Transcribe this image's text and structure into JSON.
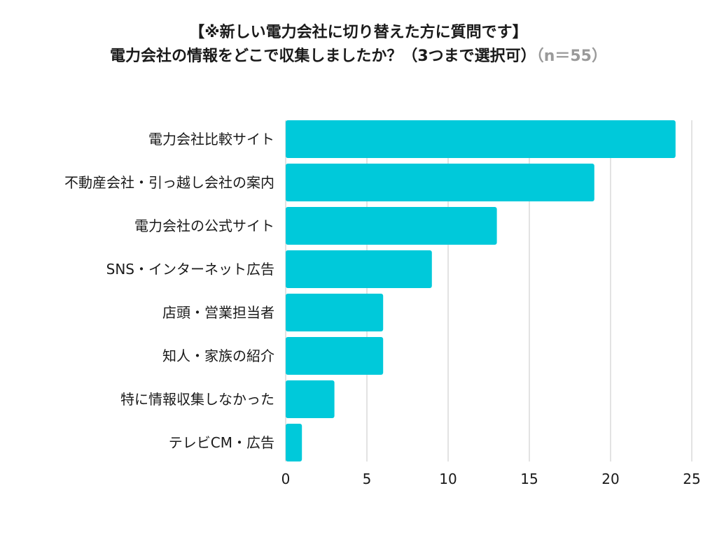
{
  "chart_data": {
    "type": "bar",
    "orientation": "horizontal",
    "title_line1": "【※新しい電力会社に切り替えた方に質問です】",
    "title_line2": "電力会社の情報をどこで収集しましたか？（3つまで選択可）",
    "title_note": "（n＝55）",
    "categories": [
      "電力会社比較サイト",
      "不動産会社・引っ越し会社の案内",
      "電力会社の公式サイト",
      "SNS・インターネット広告",
      "店頭・営業担当者",
      "知人・家族の紹介",
      "特に情報収集しなかった",
      "テレビCM・広告"
    ],
    "values": [
      24,
      19,
      13,
      9,
      6,
      6,
      3,
      1
    ],
    "xlim": [
      0,
      25
    ],
    "xticks": [
      "0",
      "5",
      "10",
      "15",
      "20",
      "25"
    ],
    "grid": "vertical",
    "bar_color": "#00C9DA",
    "legend": "none"
  }
}
